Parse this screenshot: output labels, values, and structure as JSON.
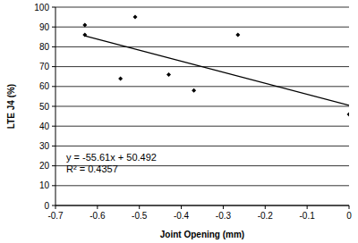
{
  "chart_data": {
    "type": "scatter",
    "x_label": "Joint Opening (mm)",
    "y_label": "LTE J4 (%)",
    "annotations": [
      "y = -55.61x + 50.492",
      "R² = 0.4357"
    ],
    "series": [
      {
        "type": "scatter",
        "marker": "diamond",
        "color": "#000000",
        "x": [
          -0.63,
          -0.63,
          -0.51,
          -0.545,
          -0.43,
          -0.37,
          -0.265,
          0
        ],
        "values": [
          91,
          86,
          95,
          64,
          66,
          58,
          86,
          46
        ]
      },
      {
        "type": "line",
        "line_style": "solid",
        "color": "#000000",
        "x": [
          -0.63,
          0
        ],
        "values": [
          85.5,
          50.5
        ]
      }
    ],
    "xlim": [
      -0.7,
      0
    ],
    "xticks": [
      -0.7,
      -0.6,
      -0.5,
      -0.4,
      -0.3,
      -0.2,
      -0.1,
      0
    ],
    "ylim": [
      0,
      100
    ],
    "yticks": [
      0,
      10,
      20,
      30,
      40,
      50,
      60,
      70,
      80,
      90,
      100
    ],
    "grid": true
  }
}
